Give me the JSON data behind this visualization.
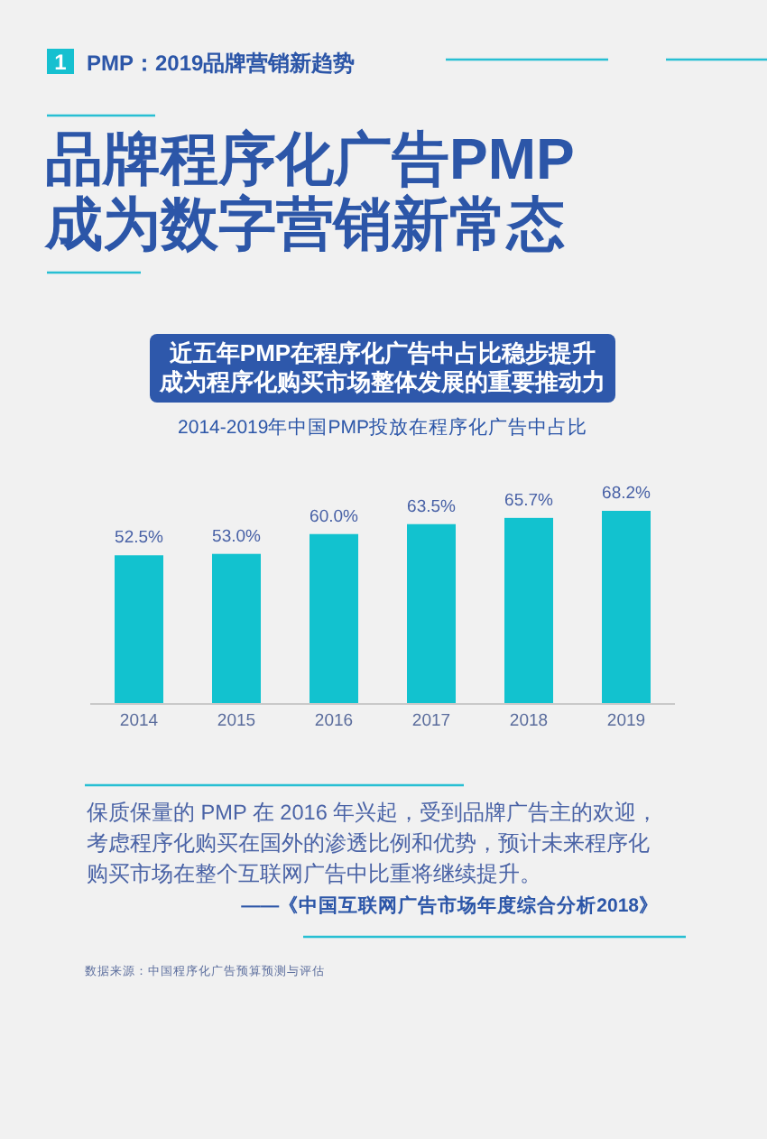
{
  "chart_data": {
    "type": "bar",
    "title": "品牌程序化广告PMP成为数字营销新常态",
    "subtitle": "近五年PMP在程序化广告中占比稳步提升成为程序化购买市场整体发展的重要推动力",
    "annotations": [
      "1",
      "PMP：2019品牌营销新趋势",
      "2014-2019年中国PMP投放在程序化广告中占比",
      "保质保量的 PMP 在 2016 年兴起，受到品牌广告主的欢迎，考虑程序化购买在国外的渗透比例和优势，预计未来程序化购买市场在整个互联网广告中比重将继续提升。",
      "——《中国互联网广告市场年度综合分析2018》",
      "数据来源：中国程序化广告预算预测与评估"
    ],
    "categories": [
      "2014",
      "2015",
      "2016",
      "2017",
      "2018",
      "2019"
    ],
    "values": [
      52.5,
      53.0,
      60.0,
      63.5,
      65.7,
      68.2
    ],
    "value_labels": [
      "52.5%",
      "53.0%",
      "60.0%",
      "63.5%",
      "65.7%",
      "68.2%"
    ],
    "color": "#12c2cf",
    "tick_labels": "x"
  }
}
